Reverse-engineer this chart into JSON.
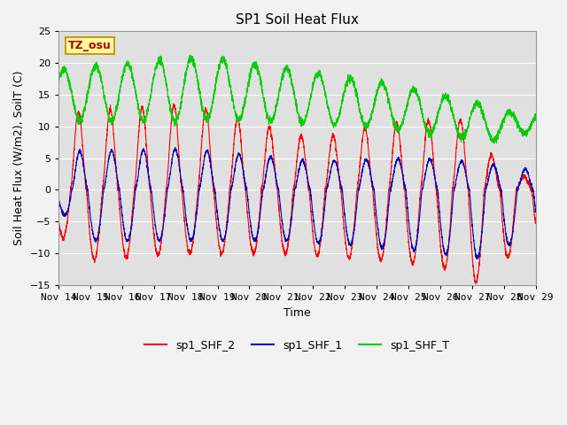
{
  "title": "SP1 Soil Heat Flux",
  "xlabel": "Time",
  "ylabel": "Soil Heat Flux (W/m2), SoilT (C)",
  "ylim": [
    -15,
    25
  ],
  "x_tick_labels": [
    "Nov 14",
    "Nov 15",
    "Nov 16",
    "Nov 17",
    "Nov 18",
    "Nov 19",
    "Nov 20",
    "Nov 21",
    "Nov 22",
    "Nov 23",
    "Nov 24",
    "Nov 25",
    "Nov 26",
    "Nov 27",
    "Nov 28",
    "Nov 29"
  ],
  "color_shf2": "#FF0000",
  "color_shf1": "#0000BB",
  "color_shfT": "#00CC00",
  "background_color": "#E0E0E0",
  "fig_bg": "#F2F2F2",
  "grid_color": "#FFFFFF",
  "annotation_text": "TZ_osu",
  "annotation_fg": "#AA0000",
  "annotation_bg": "#FFFF99",
  "annotation_border": "#BB8800",
  "legend_labels": [
    "sp1_SHF_2",
    "sp1_SHF_1",
    "sp1_SHF_T"
  ],
  "title_fontsize": 11,
  "label_fontsize": 9,
  "tick_fontsize": 8,
  "legend_fontsize": 9
}
